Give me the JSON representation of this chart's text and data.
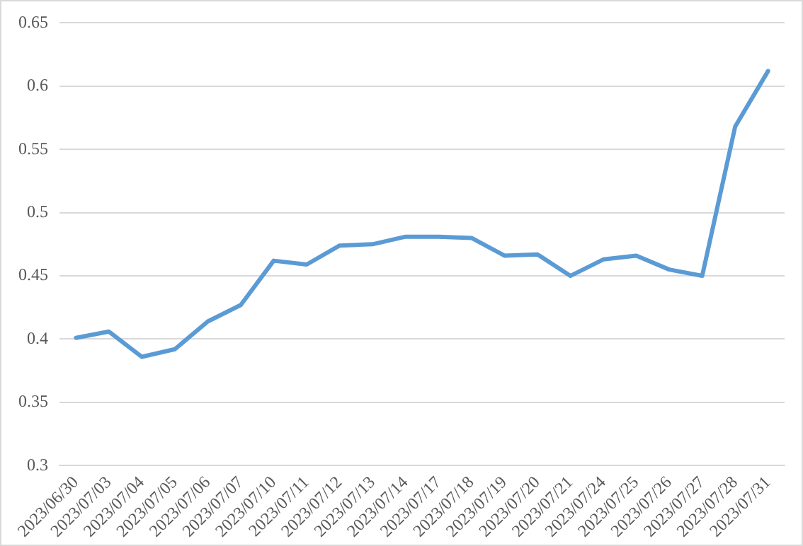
{
  "chart_data": {
    "type": "line",
    "categories": [
      "2023/06/30",
      "2023/07/03",
      "2023/07/04",
      "2023/07/05",
      "2023/07/06",
      "2023/07/07",
      "2023/07/10",
      "2023/07/11",
      "2023/07/12",
      "2023/07/13",
      "2023/07/14",
      "2023/07/17",
      "2023/07/18",
      "2023/07/19",
      "2023/07/20",
      "2023/07/21",
      "2023/07/24",
      "2023/07/25",
      "2023/07/26",
      "2023/07/27",
      "2023/07/28",
      "2023/07/31"
    ],
    "series": [
      {
        "color": "#5b9bd5",
        "values": [
          0.401,
          0.406,
          0.386,
          0.392,
          0.414,
          0.427,
          0.462,
          0.459,
          0.474,
          0.475,
          0.481,
          0.481,
          0.48,
          0.466,
          0.467,
          0.45,
          0.463,
          0.466,
          0.455,
          0.45,
          0.568,
          0.612
        ]
      }
    ],
    "ylim": [
      0.3,
      0.65
    ],
    "yticks": [
      0.3,
      0.35,
      0.4,
      0.45,
      0.5,
      0.55,
      0.6,
      0.65
    ],
    "grid": "y",
    "legend": false,
    "marker": "none",
    "line_style": "solid"
  }
}
